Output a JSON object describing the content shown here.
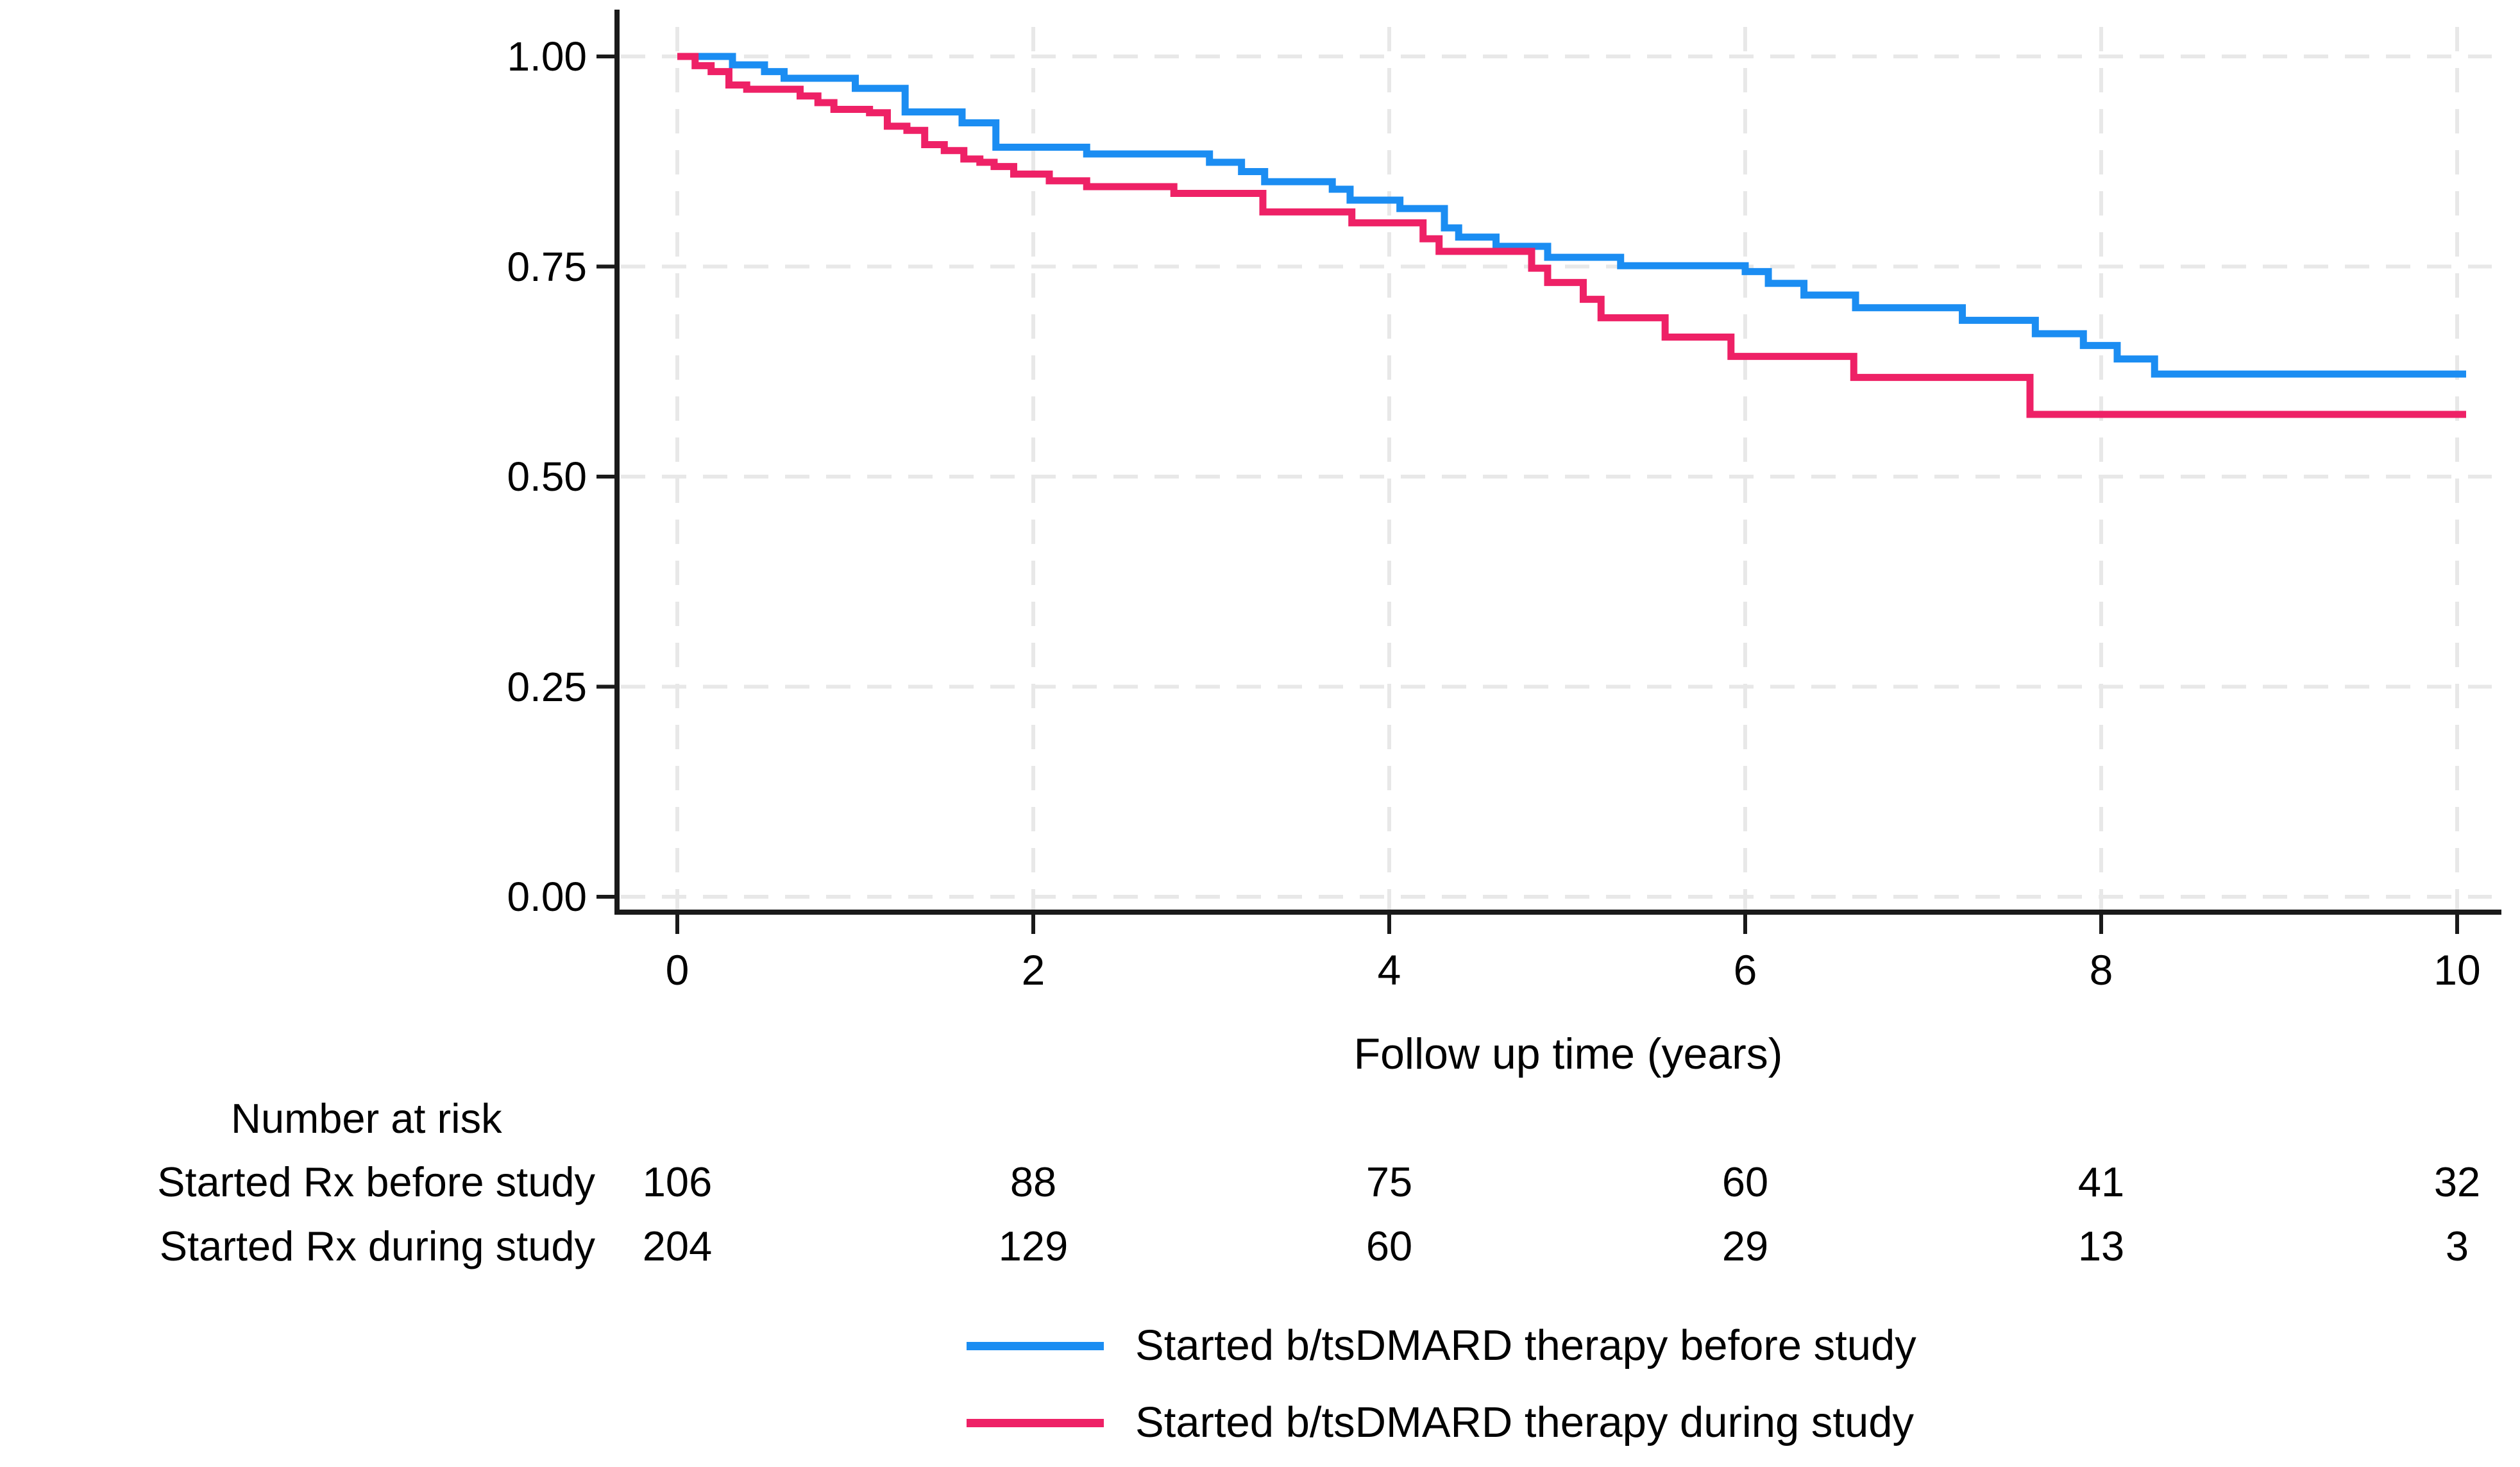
{
  "figure": {
    "background": "#ffffff",
    "axis_color": "#1a1a1a",
    "grid_color": "#e8e8e8"
  },
  "chart_data": {
    "type": "line",
    "subtype": "kaplan-meier-step",
    "title": "",
    "xlabel": "Follow up time (years)",
    "ylabel": "",
    "xlim": [
      0,
      10
    ],
    "ylim": [
      0,
      1
    ],
    "x_ticks": [
      0,
      2,
      4,
      6,
      8,
      10
    ],
    "x_tick_labels": [
      "0",
      "2",
      "4",
      "6",
      "8",
      "10"
    ],
    "y_ticks": [
      1.0,
      0.75,
      0.5,
      0.25,
      0.0
    ],
    "y_tick_labels": [
      "1.00",
      "0.75",
      "0.50",
      "0.25",
      "0.00"
    ],
    "grid": "dashed-light",
    "legend_position": "bottom",
    "series": [
      {
        "name": "Started b/tsDMARD therapy before study",
        "color": "#1b8df2",
        "steps": [
          [
            0,
            1.0
          ],
          [
            0.31,
            0.99
          ],
          [
            0.49,
            0.982
          ],
          [
            0.6,
            0.974
          ],
          [
            1.0,
            0.962
          ],
          [
            1.28,
            0.934
          ],
          [
            1.6,
            0.921
          ],
          [
            1.79,
            0.892
          ],
          [
            2.3,
            0.884
          ],
          [
            2.99,
            0.874
          ],
          [
            3.17,
            0.863
          ],
          [
            3.3,
            0.851
          ],
          [
            3.68,
            0.842
          ],
          [
            3.78,
            0.829
          ],
          [
            4.06,
            0.819
          ],
          [
            4.31,
            0.796
          ],
          [
            4.39,
            0.785
          ],
          [
            4.6,
            0.774
          ],
          [
            4.89,
            0.761
          ],
          [
            5.3,
            0.751
          ],
          [
            6.0,
            0.744
          ],
          [
            6.13,
            0.73
          ],
          [
            6.33,
            0.716
          ],
          [
            6.62,
            0.701
          ],
          [
            7.22,
            0.686
          ],
          [
            7.63,
            0.67
          ],
          [
            7.9,
            0.656
          ],
          [
            8.09,
            0.64
          ],
          [
            8.3,
            0.622
          ],
          [
            10,
            0.622
          ]
        ]
      },
      {
        "name": "Started b/tsDMARD therapy during study",
        "color": "#ee2166",
        "steps": [
          [
            0,
            1.0
          ],
          [
            0.1,
            0.989
          ],
          [
            0.19,
            0.982
          ],
          [
            0.29,
            0.966
          ],
          [
            0.39,
            0.961
          ],
          [
            0.69,
            0.953
          ],
          [
            0.79,
            0.945
          ],
          [
            0.88,
            0.937
          ],
          [
            1.08,
            0.933
          ],
          [
            1.18,
            0.917
          ],
          [
            1.29,
            0.912
          ],
          [
            1.39,
            0.895
          ],
          [
            1.5,
            0.888
          ],
          [
            1.61,
            0.878
          ],
          [
            1.7,
            0.874
          ],
          [
            1.78,
            0.869
          ],
          [
            1.89,
            0.86
          ],
          [
            2.09,
            0.852
          ],
          [
            2.3,
            0.845
          ],
          [
            2.79,
            0.837
          ],
          [
            3.29,
            0.815
          ],
          [
            3.79,
            0.802
          ],
          [
            4.19,
            0.783
          ],
          [
            4.28,
            0.768
          ],
          [
            4.8,
            0.748
          ],
          [
            4.89,
            0.731
          ],
          [
            5.09,
            0.711
          ],
          [
            5.19,
            0.689
          ],
          [
            5.55,
            0.666
          ],
          [
            5.92,
            0.643
          ],
          [
            6.61,
            0.618
          ],
          [
            7.6,
            0.574
          ],
          [
            10,
            0.574
          ]
        ]
      }
    ]
  },
  "risk_table": {
    "title": "Number at risk",
    "times": [
      0,
      2,
      4,
      6,
      8,
      10
    ],
    "rows": [
      {
        "label": "Started Rx before study",
        "values": [
          "106",
          "88",
          "75",
          "60",
          "41",
          "32"
        ]
      },
      {
        "label": "Started Rx during study",
        "values": [
          "204",
          "129",
          "60",
          "29",
          "13",
          "3"
        ]
      }
    ]
  }
}
